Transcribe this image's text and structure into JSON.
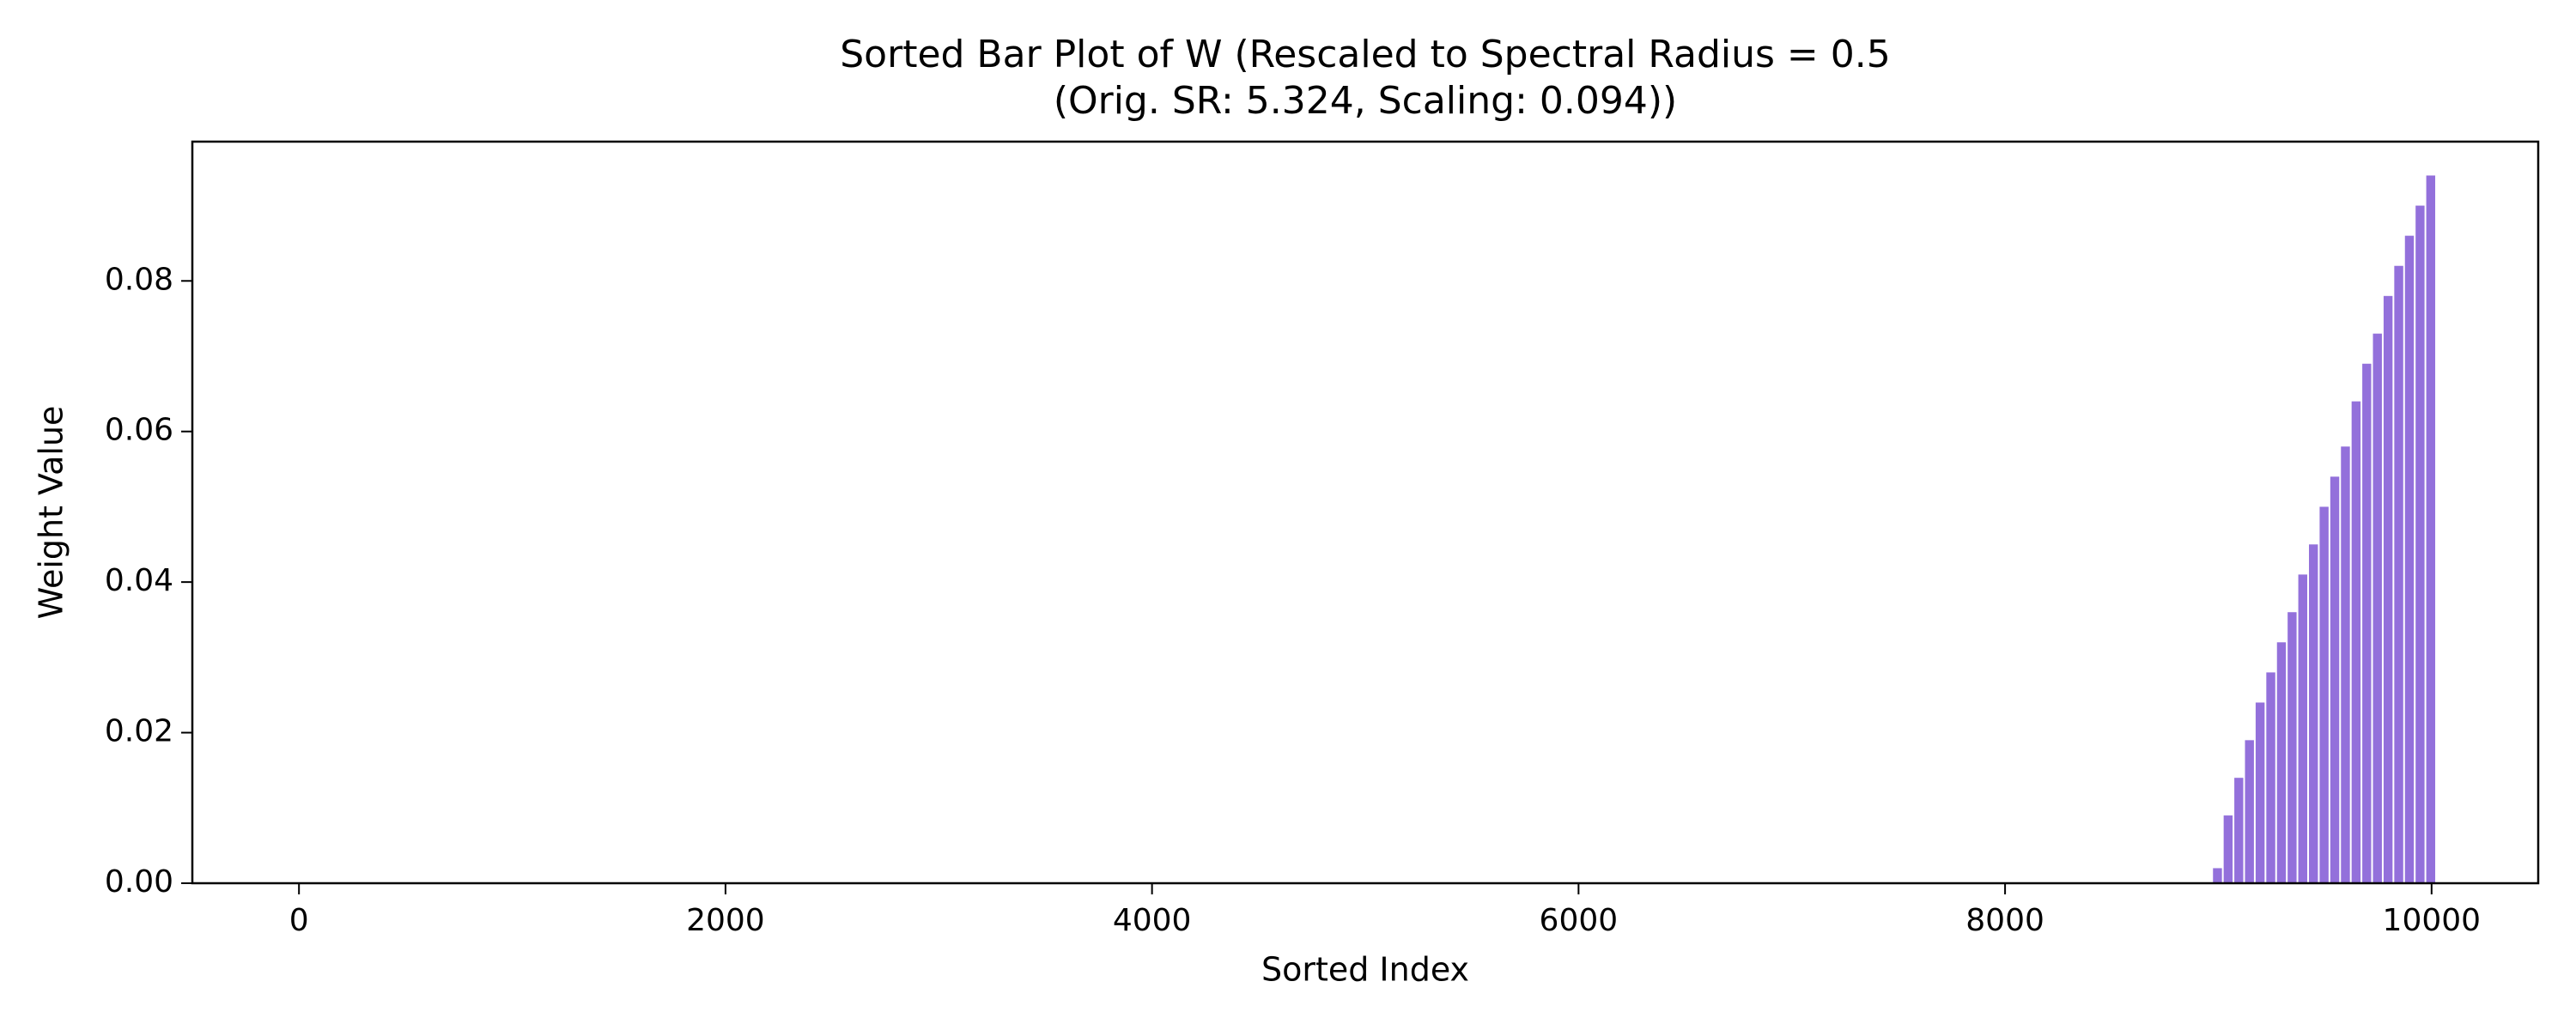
{
  "chart_data": {
    "type": "bar",
    "title": [
      "Sorted Bar Plot of W (Rescaled to Spectral Radius = 0.5",
      "(Orig. SR: 5.324, Scaling: 0.094))"
    ],
    "xlabel": "Sorted Index",
    "ylabel": "Weight Value",
    "color": "#9370db",
    "x": [
      9000,
      9050,
      9100,
      9150,
      9200,
      9250,
      9300,
      9350,
      9400,
      9450,
      9500,
      9550,
      9600,
      9650,
      9700,
      9750,
      9800,
      9850,
      9900,
      9950,
      10000
    ],
    "values": [
      0.002,
      0.009,
      0.014,
      0.019,
      0.024,
      0.028,
      0.032,
      0.036,
      0.041,
      0.045,
      0.05,
      0.054,
      0.058,
      0.064,
      0.069,
      0.073,
      0.078,
      0.082,
      0.086,
      0.09,
      0.094
    ],
    "xlim": [
      -500,
      10500
    ],
    "xticks": [
      0,
      2000,
      4000,
      6000,
      8000,
      10000
    ],
    "ylim": [
      0,
      0.0985
    ],
    "yticks": [
      {
        "value": 0,
        "label": "0.00"
      },
      {
        "value": 0.02,
        "label": "0.02"
      },
      {
        "value": 0.04,
        "label": "0.04"
      },
      {
        "value": 0.06,
        "label": "0.06"
      },
      {
        "value": 0.08,
        "label": "0.08"
      }
    ],
    "grid": false
  }
}
